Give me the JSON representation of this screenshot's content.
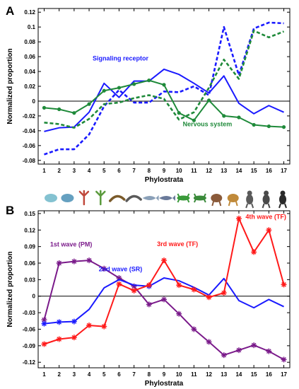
{
  "chart_data": [
    {
      "panel": "A",
      "type": "line",
      "xlabel": "Phylostrata",
      "ylabel": "Normalized proportion",
      "x": [
        1,
        2,
        3,
        4,
        5,
        6,
        7,
        8,
        9,
        10,
        11,
        12,
        13,
        14,
        15,
        16,
        17
      ],
      "xlim": [
        0.6,
        17.4
      ],
      "ylim": [
        -0.085,
        0.125
      ],
      "yticks": [
        -0.08,
        -0.06,
        -0.04,
        -0.02,
        0,
        0.02,
        0.04,
        0.06,
        0.08,
        0.1,
        0.12
      ],
      "ytick_labels": [
        "-0.08",
        "-0.06",
        "-0.04",
        "-0.02",
        "0",
        "0.02",
        "0.04",
        "0.06",
        "0.08",
        "0.1",
        "0.12"
      ],
      "zero_line": true,
      "series": [
        {
          "name": "Signaling receptor",
          "color": "#1a1aff",
          "style": "solid",
          "marker": "none",
          "values": [
            -0.041,
            -0.036,
            -0.035,
            -0.015,
            0.024,
            0.005,
            0.027,
            0.027,
            0.043,
            0.036,
            0.024,
            0.011,
            0.034,
            -0.003,
            -0.017,
            -0.006,
            -0.015
          ]
        },
        {
          "name": "",
          "color": "#1a1aff",
          "style": "dashed",
          "marker": "none",
          "values": [
            -0.072,
            -0.065,
            -0.065,
            -0.045,
            -0.007,
            0.015,
            -0.002,
            -0.002,
            0.013,
            0.012,
            0.02,
            0.008,
            0.1,
            0.035,
            0.098,
            0.106,
            0.105
          ]
        },
        {
          "name": "Nervous system",
          "color": "#1f8a3a",
          "style": "solid",
          "marker": "circle",
          "values": [
            -0.009,
            -0.011,
            -0.016,
            -0.004,
            0.014,
            0.018,
            0.023,
            0.028,
            0.022,
            -0.016,
            -0.026,
            0.001,
            -0.02,
            -0.022,
            -0.032,
            -0.034,
            -0.035
          ]
        },
        {
          "name": "",
          "color": "#1f8a3a",
          "style": "dashed",
          "marker": "none",
          "values": [
            -0.029,
            -0.031,
            -0.036,
            -0.024,
            -0.004,
            -0.002,
            0.004,
            0.008,
            0.003,
            -0.025,
            -0.015,
            0.018,
            0.056,
            0.03,
            0.095,
            0.086,
            0.094
          ]
        }
      ],
      "annotations": [
        {
          "text": "Signaling receptor",
          "color": "#1a1aff",
          "x": 6.1,
          "y": 0.055
        },
        {
          "text": "Nervous system",
          "color": "#1f8a3a",
          "x": 11.9,
          "y": -0.034
        }
      ]
    },
    {
      "panel": "B",
      "type": "line",
      "xlabel": "Phylostrata",
      "ylabel": "Normalized proportion",
      "x": [
        1,
        2,
        3,
        4,
        5,
        6,
        7,
        8,
        9,
        10,
        11,
        12,
        13,
        14,
        15,
        16,
        17
      ],
      "xlim": [
        0.6,
        17.4
      ],
      "ylim": [
        -0.13,
        0.155
      ],
      "yticks": [
        -0.12,
        -0.09,
        -0.06,
        -0.03,
        0,
        0.03,
        0.06,
        0.09,
        0.12,
        0.15
      ],
      "ytick_labels": [
        "-0.12",
        "-0.09",
        "-0.06",
        "-0.03",
        "0",
        "0.03",
        "0.06",
        "0.09",
        "0.12",
        "0.15"
      ],
      "zero_line": true,
      "series": [
        {
          "name": "1st wave (PM)",
          "color": "#7a1a8a",
          "marker": "star",
          "values": [
            -0.043,
            0.06,
            0.063,
            0.065,
            0.05,
            0.033,
            0.018,
            -0.015,
            -0.006,
            -0.032,
            -0.06,
            -0.083,
            -0.107,
            -0.098,
            -0.089,
            -0.1,
            -0.115
          ]
        },
        {
          "name": "2nd wave (SR)",
          "color": "#1a1aff",
          "marker": "star-first",
          "values": [
            -0.05,
            -0.047,
            -0.046,
            -0.024,
            0.015,
            0.03,
            0.02,
            0.018,
            0.033,
            0.028,
            0.016,
            0.002,
            0.032,
            -0.008,
            -0.021,
            -0.006,
            -0.019
          ]
        },
        {
          "name": "3rd wave (TF)",
          "color": "#ff1a1a",
          "marker": "star",
          "values": [
            -0.087,
            -0.078,
            -0.075,
            -0.053,
            -0.055,
            0.022,
            0.01,
            0.02,
            0.065,
            0.02,
            0.012,
            -0.002,
            0.006,
            0.141,
            0.08,
            0.12,
            0.021
          ]
        }
      ],
      "annotations": [
        {
          "text": "1st wave (PM)",
          "color": "#7a1a8a",
          "x": 2.8,
          "y": 0.09
        },
        {
          "text": "2nd wave (SR)",
          "color": "#1a1aff",
          "x": 6.1,
          "y": 0.045
        },
        {
          "text": "3rd wave (TF)",
          "color": "#ff1a1a",
          "x": 9.9,
          "y": 0.091
        },
        {
          "text": "4th wave (TF)",
          "color": "#ff1a1a",
          "x": 15.8,
          "y": 0.14
        }
      ]
    }
  ],
  "organism_icons": [
    "amoeba-icon",
    "protist-icon",
    "coral-icon",
    "hydra-icon",
    "worm-icon",
    "leech-icon",
    "fish-icon",
    "coelacanth-icon",
    "frog-icon",
    "lizard-icon",
    "platypus-icon",
    "kangaroo-icon",
    "lemur-icon",
    "monkey-icon",
    "gorilla-icon"
  ]
}
